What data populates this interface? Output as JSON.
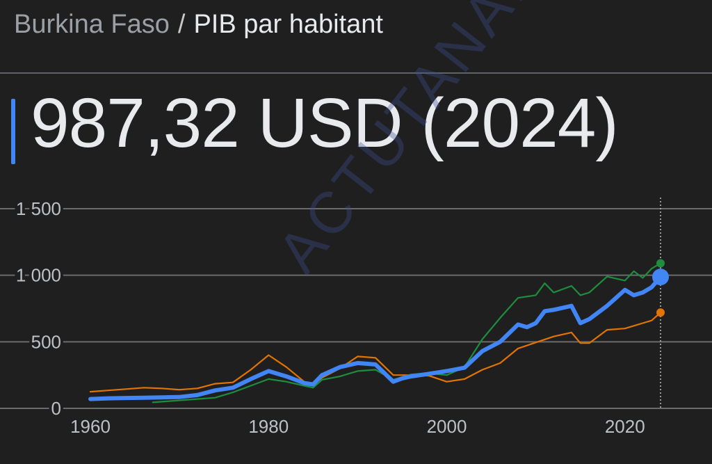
{
  "header": {
    "country": "Burkina Faso",
    "separator": "/",
    "metric": "PIB par habitant"
  },
  "headline": {
    "value": "987,32 USD (2024)",
    "accent": "#4285f4"
  },
  "watermark": "ACTUTANA.COM",
  "chart_data": {
    "type": "line",
    "title": "",
    "xlabel": "",
    "ylabel": "",
    "xlim": [
      1960,
      2024
    ],
    "ylim": [
      0,
      1500
    ],
    "grid": true,
    "y_ticks": [
      {
        "value": 0,
        "label": "0"
      },
      {
        "value": 500,
        "label": "500"
      },
      {
        "value": 1000,
        "label": "1 000"
      },
      {
        "value": 1500,
        "label": "1 500"
      }
    ],
    "x_ticks": [
      {
        "value": 1960,
        "label": "1960"
      },
      {
        "value": 1980,
        "label": "1980"
      },
      {
        "value": 2000,
        "label": "2000"
      },
      {
        "value": 2020,
        "label": "2020"
      }
    ],
    "series": [
      {
        "color": "#e37400",
        "x": [
          1960,
          1962,
          1964,
          1966,
          1968,
          1970,
          1972,
          1974,
          1976,
          1978,
          1980,
          1982,
          1984,
          1985,
          1986,
          1988,
          1990,
          1992,
          1994,
          1996,
          1998,
          2000,
          2002,
          2004,
          2006,
          2008,
          2010,
          2012,
          2014,
          2015,
          2016,
          2018,
          2020,
          2022,
          2023,
          2024
        ],
        "y": [
          125,
          135,
          145,
          155,
          150,
          140,
          150,
          185,
          195,
          290,
          400,
          310,
          200,
          175,
          230,
          300,
          390,
          380,
          250,
          250,
          245,
          200,
          220,
          290,
          340,
          450,
          495,
          540,
          570,
          490,
          490,
          590,
          600,
          640,
          660,
          720
        ]
      },
      {
        "color": "#1e8e3e",
        "x": [
          1967,
          1970,
          1972,
          1974,
          1976,
          1978,
          1980,
          1982,
          1984,
          1985,
          1986,
          1988,
          1990,
          1992,
          1994,
          1996,
          1998,
          2000,
          2002,
          2004,
          2006,
          2008,
          2010,
          2011,
          2012,
          2014,
          2015,
          2016,
          2018,
          2020,
          2021,
          2022,
          2023,
          2024
        ],
        "y": [
          45,
          60,
          70,
          80,
          120,
          170,
          220,
          200,
          170,
          155,
          215,
          240,
          280,
          290,
          215,
          255,
          265,
          250,
          310,
          520,
          680,
          830,
          850,
          940,
          870,
          920,
          850,
          870,
          990,
          960,
          1030,
          980,
          1050,
          1090
        ]
      },
      {
        "color": "#4285f4",
        "x": [
          1960,
          1962,
          1964,
          1966,
          1968,
          1970,
          1972,
          1974,
          1976,
          1978,
          1980,
          1982,
          1984,
          1985,
          1986,
          1988,
          1990,
          1992,
          1994,
          1995,
          1996,
          1998,
          2000,
          2002,
          2004,
          2006,
          2008,
          2009,
          2010,
          2011,
          2012,
          2014,
          2015,
          2016,
          2018,
          2020,
          2021,
          2022,
          2023,
          2024
        ],
        "y": [
          70,
          75,
          78,
          80,
          82,
          85,
          100,
          135,
          155,
          220,
          280,
          240,
          190,
          180,
          250,
          310,
          340,
          330,
          200,
          225,
          240,
          260,
          280,
          305,
          430,
          500,
          630,
          610,
          640,
          730,
          740,
          770,
          640,
          670,
          770,
          890,
          850,
          870,
          910,
          987
        ]
      }
    ]
  }
}
